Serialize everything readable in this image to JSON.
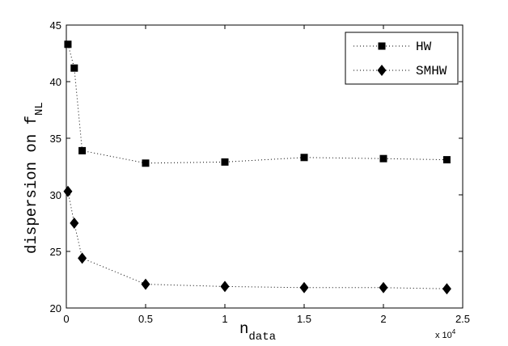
{
  "chart_data": {
    "type": "line",
    "xlabel": "n",
    "xlabel_sub": "data",
    "ylabel": "dispersion on f",
    "ylabel_sub": "NL",
    "x_multiplier_base": "x 10",
    "x_multiplier_exp": "4",
    "xlim": [
      0,
      2.5
    ],
    "ylim": [
      20,
      45
    ],
    "xticks": [
      0,
      0.5,
      1,
      1.5,
      2,
      2.5
    ],
    "xtick_labels": [
      "0",
      "0.5",
      "1",
      "1.5",
      "2",
      "2.5"
    ],
    "yticks": [
      20,
      25,
      30,
      35,
      40,
      45
    ],
    "ytick_labels": [
      "20",
      "25",
      "30",
      "35",
      "40",
      "45"
    ],
    "grid": false,
    "legend_position": "top-right",
    "line_style": "dotted",
    "series": [
      {
        "name": "HW",
        "marker": "square",
        "x": [
          0.01,
          0.05,
          0.1,
          0.5,
          1,
          1.5,
          2,
          2.4
        ],
        "y": [
          43.3,
          41.2,
          33.9,
          32.8,
          32.9,
          33.3,
          33.2,
          33.1
        ]
      },
      {
        "name": "SMHW",
        "marker": "diamond",
        "x": [
          0.01,
          0.05,
          0.1,
          0.5,
          1,
          1.5,
          2,
          2.4
        ],
        "y": [
          30.3,
          27.5,
          24.4,
          22.1,
          21.9,
          21.8,
          21.8,
          21.7
        ]
      }
    ]
  }
}
